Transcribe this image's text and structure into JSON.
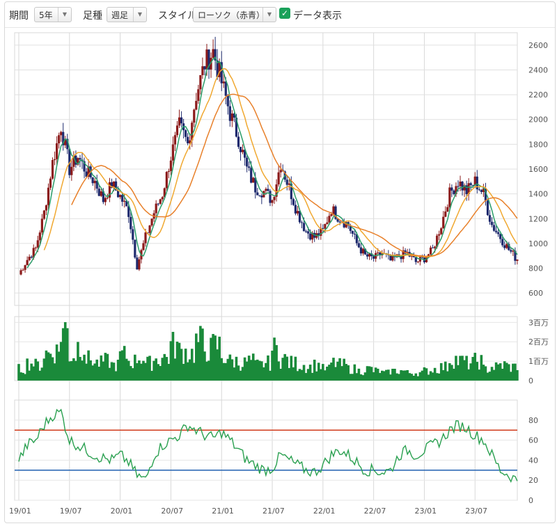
{
  "toolbar": {
    "period_label": "期間",
    "period_value": "5年",
    "bar_label": "足種",
    "bar_value": "週足",
    "style_label": "スタイル",
    "style_value": "ローソク（赤青）",
    "data_label": "データ表示",
    "data_checked": true
  },
  "colors": {
    "up_candle": "#8b1a1a",
    "down_candle": "#1e2a6e",
    "ma_short": "#2a9d6a",
    "ma_mid": "#f0a830",
    "ma_long": "#e8802a",
    "volume": "#1a8a3a",
    "rsi_line": "#2aa050",
    "rsi_upper": "#d03a1a",
    "rsi_lower": "#2060b0"
  },
  "chart_data": [
    {
      "type": "candlestick",
      "panel": "price",
      "x_tick_labels": [
        "19/01",
        "19/07",
        "20/01",
        "20/07",
        "21/01",
        "21/07",
        "22/01",
        "22/07",
        "23/01",
        "23/07"
      ],
      "y_tick_labels": [
        "2600",
        "2400",
        "2200",
        "2000",
        "1800",
        "1600",
        "1400",
        "1200",
        "1000",
        "800",
        "600"
      ],
      "ylim": [
        500,
        2700
      ],
      "close_path": [
        [
          "19/01",
          750
        ],
        [
          "19/02",
          870
        ],
        [
          "19/03",
          960
        ],
        [
          "19/04",
          1250
        ],
        [
          "19/05",
          1650
        ],
        [
          "19/06",
          1950
        ],
        [
          "19/07",
          1600
        ],
        [
          "19/08",
          1700
        ],
        [
          "19/09",
          1580
        ],
        [
          "19/10",
          1500
        ],
        [
          "19/11",
          1350
        ],
        [
          "19/12",
          1480
        ],
        [
          "20/01",
          1380
        ],
        [
          "20/02",
          1250
        ],
        [
          "20/03",
          820
        ],
        [
          "20/04",
          1050
        ],
        [
          "20/05",
          1250
        ],
        [
          "20/06",
          1400
        ],
        [
          "20/07",
          1700
        ],
        [
          "20/08",
          1950
        ],
        [
          "20/09",
          1800
        ],
        [
          "20/10",
          2200
        ],
        [
          "20/11",
          2450
        ],
        [
          "20/12",
          2550
        ],
        [
          "21/01",
          2300
        ],
        [
          "21/02",
          2050
        ],
        [
          "21/03",
          1850
        ],
        [
          "21/04",
          1600
        ],
        [
          "21/05",
          1450
        ],
        [
          "21/06",
          1420
        ],
        [
          "21/07",
          1350
        ],
        [
          "21/08",
          1650
        ],
        [
          "21/09",
          1450
        ],
        [
          "21/10",
          1250
        ],
        [
          "21/11",
          1100
        ],
        [
          "21/12",
          1050
        ],
        [
          "22/01",
          1100
        ],
        [
          "22/02",
          1280
        ],
        [
          "22/03",
          1200
        ],
        [
          "22/04",
          1150
        ],
        [
          "22/05",
          1000
        ],
        [
          "22/06",
          900
        ],
        [
          "22/07",
          880
        ],
        [
          "22/08",
          920
        ],
        [
          "22/09",
          860
        ],
        [
          "22/10",
          900
        ],
        [
          "22/11",
          920
        ],
        [
          "22/12",
          850
        ],
        [
          "23/01",
          880
        ],
        [
          "23/02",
          950
        ],
        [
          "23/03",
          1150
        ],
        [
          "23/04",
          1400
        ],
        [
          "23/05",
          1500
        ],
        [
          "23/06",
          1420
        ],
        [
          "23/07",
          1500
        ],
        [
          "23/08",
          1400
        ],
        [
          "23/09",
          1150
        ],
        [
          "23/10",
          1050
        ],
        [
          "23/11",
          950
        ],
        [
          "23/12",
          870
        ]
      ],
      "moving_averages": [
        {
          "period": "short",
          "color": "#2a9d6a"
        },
        {
          "period": "mid",
          "color": "#f0a830"
        },
        {
          "period": "long",
          "color": "#e8802a"
        }
      ]
    },
    {
      "type": "bar",
      "panel": "volume",
      "y_tick_labels": [
        "3百万",
        "2百万",
        "1百万",
        "0"
      ],
      "ylim": [
        0,
        3.3
      ],
      "unit_millions": true,
      "values_monthly": [
        0.6,
        0.9,
        0.8,
        1.4,
        1.5,
        2.6,
        1.3,
        1.8,
        1.1,
        0.9,
        1.0,
        0.8,
        1.3,
        1.0,
        1.2,
        0.9,
        1.1,
        1.2,
        1.8,
        1.5,
        1.4,
        2.0,
        1.6,
        1.8,
        1.2,
        1.0,
        0.9,
        1.0,
        0.8,
        0.9,
        1.6,
        1.1,
        0.9,
        0.8,
        0.7,
        0.8,
        0.6,
        0.9,
        0.8,
        0.6,
        0.5,
        0.6,
        0.5,
        0.4,
        0.5,
        0.5,
        0.4,
        0.4,
        0.5,
        0.6,
        0.7,
        1.1,
        1.0,
        0.9,
        1.0,
        0.6,
        0.7,
        0.8,
        0.7,
        0.8
      ]
    },
    {
      "type": "line",
      "panel": "rsi",
      "y_tick_labels": [
        "80",
        "60",
        "40",
        "20",
        "0"
      ],
      "ylim": [
        0,
        100
      ],
      "upper_line": 70,
      "lower_line": 30,
      "values_monthly": [
        40,
        55,
        60,
        75,
        85,
        88,
        60,
        55,
        50,
        45,
        42,
        40,
        45,
        38,
        25,
        20,
        45,
        55,
        60,
        65,
        75,
        70,
        65,
        62,
        68,
        60,
        50,
        40,
        35,
        30,
        32,
        45,
        40,
        35,
        30,
        28,
        35,
        45,
        50,
        45,
        38,
        30,
        30,
        28,
        30,
        45,
        50,
        45,
        50,
        55,
        60,
        70,
        75,
        72,
        65,
        60,
        45,
        30,
        25,
        20
      ]
    }
  ]
}
